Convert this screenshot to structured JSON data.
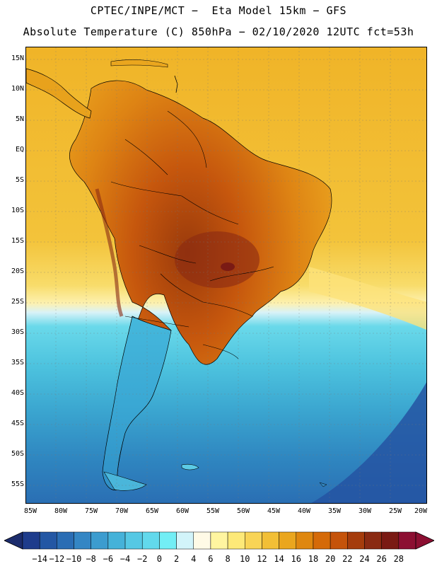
{
  "title_line1": "CPTEC/INPE/MCT −  Eta Model 15km − GFS",
  "title_line2": "Absolute Temperature (C) 850hPa − 02/10/2020 12UTC fct=53h",
  "lat_labels": [
    "15N",
    "10N",
    "5N",
    "EQ",
    "5S",
    "10S",
    "15S",
    "20S",
    "25S",
    "30S",
    "35S",
    "40S",
    "45S",
    "50S",
    "55S"
  ],
  "lon_labels": [
    "85W",
    "80W",
    "75W",
    "70W",
    "65W",
    "60W",
    "55W",
    "50W",
    "45W",
    "40W",
    "35W",
    "30W",
    "25W",
    "20W"
  ],
  "colorbar": {
    "ticks": [
      "−14",
      "−12",
      "−10",
      "−8",
      "−6",
      "−4",
      "−2",
      "0",
      "2",
      "4",
      "6",
      "8",
      "10",
      "12",
      "14",
      "16",
      "18",
      "20",
      "22",
      "24",
      "26",
      "28"
    ],
    "colors": [
      "#1e3c8c",
      "#2357a4",
      "#2a6db4",
      "#3486c4",
      "#3c9ccf",
      "#45b2d9",
      "#55c8e4",
      "#62d9ec",
      "#72eef5",
      "#d2f4fa",
      "#fffae6",
      "#fff5a0",
      "#fde978",
      "#f8d456",
      "#f2bf36",
      "#eaa61e",
      "#df870f",
      "#d56a08",
      "#c5530a",
      "#a53c0c",
      "#8a2a12",
      "#7a1a14",
      "#8c0f32"
    ],
    "low_arrow_color": "#1c2c6c",
    "high_arrow_color": "#8c0f32"
  }
}
